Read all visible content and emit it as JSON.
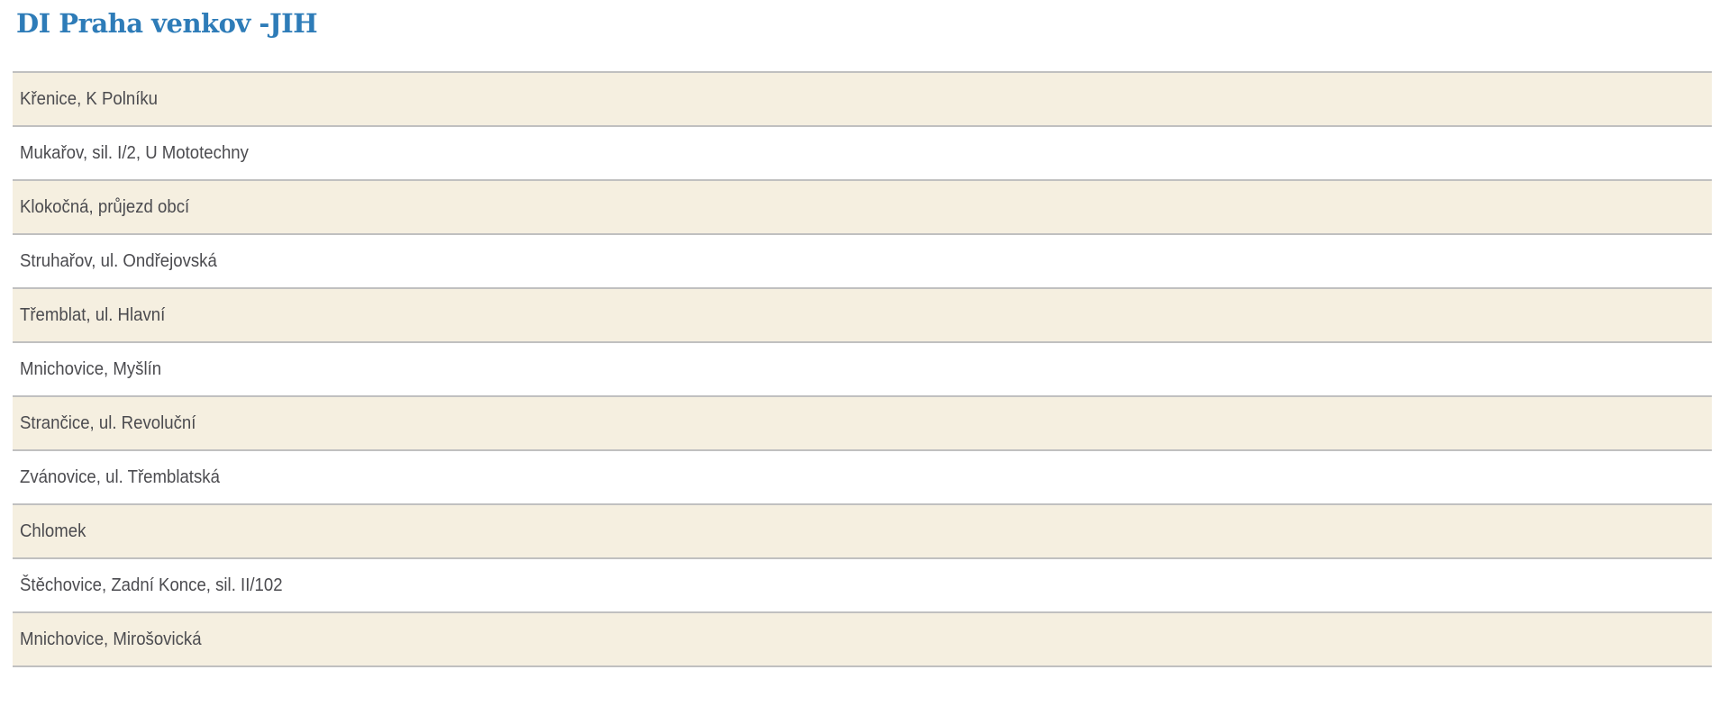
{
  "header": {
    "title": "DI Praha venkov -JIH"
  },
  "list": {
    "items": [
      {
        "label": "Křenice, K Polníku"
      },
      {
        "label": "Mukařov, sil. I/2, U Mototechny"
      },
      {
        "label": "Klokočná, průjezd obcí"
      },
      {
        "label": "Struhařov, ul. Ondřejovská"
      },
      {
        "label": "Třemblat, ul. Hlavní"
      },
      {
        "label": "Mnichovice, Myšlín"
      },
      {
        "label": "Strančice, ul. Revoluční"
      },
      {
        "label": "Zvánovice, ul. Třemblatská"
      },
      {
        "label": "Chlomek"
      },
      {
        "label": "Štěchovice, Zadní Konce, sil. II/102"
      },
      {
        "label": "Mnichovice, Mirošovická"
      }
    ]
  },
  "colors": {
    "title": "#2e7cb8",
    "row_alt_bg": "#f5efe0",
    "row_bg": "#ffffff",
    "row_border": "#c0c0c0",
    "row_text": "#4b4b4f"
  }
}
